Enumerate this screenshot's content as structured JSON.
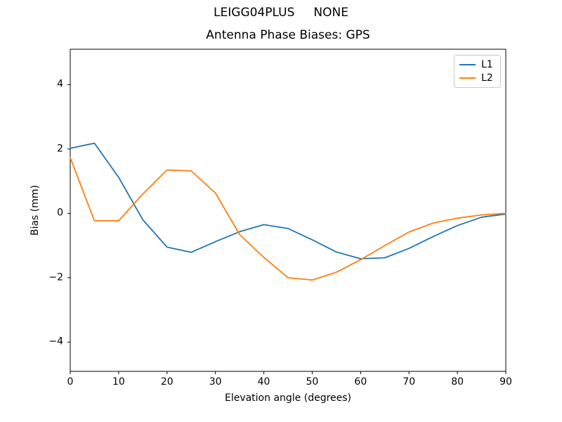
{
  "figure": {
    "suptitle": "LEIGG04PLUS     NONE",
    "background": "#ffffff",
    "text_color": "#000000",
    "spine_color": "#000000"
  },
  "chart_data": {
    "type": "line",
    "title": "Antenna Phase Biases: GPS",
    "suptitle": "LEIGG04PLUS     NONE",
    "xlabel": "Elevation angle (degrees)",
    "ylabel": "Bias (mm)",
    "xlim": [
      0,
      90
    ],
    "ylim": [
      -4.91,
      5.1
    ],
    "xticks": [
      0,
      10,
      20,
      30,
      40,
      50,
      60,
      70,
      80,
      90
    ],
    "yticks": [
      -4,
      -2,
      0,
      2,
      4
    ],
    "grid": false,
    "legend_position": "upper right",
    "x": [
      0,
      5,
      10,
      15,
      20,
      25,
      30,
      35,
      40,
      45,
      50,
      55,
      60,
      65,
      70,
      75,
      80,
      85,
      90
    ],
    "series": [
      {
        "name": "L1",
        "color": "#1f77b4",
        "values": [
          2.02,
          2.18,
          1.12,
          -0.2,
          -1.05,
          -1.21,
          -0.88,
          -0.57,
          -0.35,
          -0.47,
          -0.82,
          -1.2,
          -1.41,
          -1.38,
          -1.09,
          -0.72,
          -0.38,
          -0.12,
          -0.02
        ]
      },
      {
        "name": "L2",
        "color": "#ff7f0e",
        "values": [
          1.73,
          -0.23,
          -0.23,
          0.6,
          1.35,
          1.32,
          0.63,
          -0.66,
          -1.37,
          -2.0,
          -2.07,
          -1.83,
          -1.44,
          -1.0,
          -0.58,
          -0.3,
          -0.15,
          -0.05,
          0.0
        ]
      }
    ]
  }
}
